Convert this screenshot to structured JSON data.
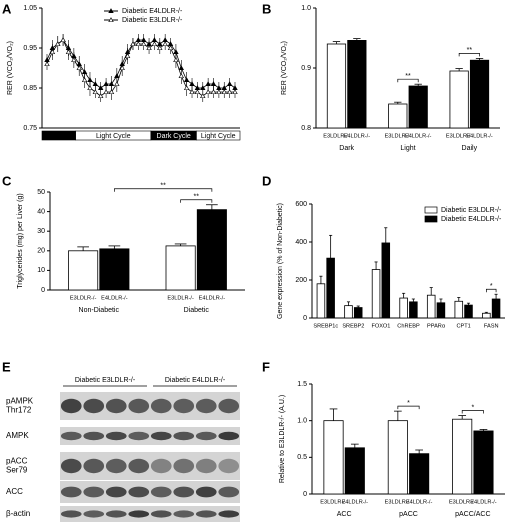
{
  "chart_data": [
    {
      "label": "A",
      "type": "line",
      "ylabel": "RER (VCO₂/VO₂)",
      "ylim": [
        0.75,
        1.05
      ],
      "yticks": [
        0.75,
        0.85,
        0.95,
        1.05
      ],
      "cycle_labels": [
        "Light Cycle",
        "Dark Cycle",
        "Light Cycle"
      ],
      "legend": "upper right",
      "series": [
        {
          "name": "Diabetic E4LDLR-/-",
          "color": "#000000",
          "marker": "filled",
          "values": [
            0.92,
            0.95,
            0.96,
            0.97,
            0.95,
            0.93,
            0.91,
            0.89,
            0.87,
            0.86,
            0.85,
            0.86,
            0.86,
            0.88,
            0.91,
            0.94,
            0.96,
            0.97,
            0.97,
            0.96,
            0.97,
            0.96,
            0.97,
            0.96,
            0.94,
            0.9,
            0.87,
            0.86,
            0.85,
            0.85,
            0.86,
            0.86,
            0.85,
            0.85,
            0.86,
            0.85
          ],
          "errors": [
            0.015,
            0.02,
            0.02,
            0.015,
            0.02,
            0.02,
            0.02,
            0.02,
            0.02,
            0.015,
            0.015,
            0.015,
            0.02,
            0.02,
            0.02,
            0.02,
            0.015,
            0.015,
            0.015,
            0.015,
            0.015,
            0.015,
            0.015,
            0.015,
            0.02,
            0.02,
            0.02,
            0.015,
            0.015,
            0.015,
            0.015,
            0.015,
            0.015,
            0.015,
            0.015,
            0.015
          ]
        },
        {
          "name": "Diabetic E3LDLR-/-",
          "color": "#000000",
          "marker": "open",
          "values": [
            0.91,
            0.94,
            0.96,
            0.97,
            0.94,
            0.92,
            0.9,
            0.87,
            0.85,
            0.84,
            0.83,
            0.84,
            0.84,
            0.86,
            0.9,
            0.93,
            0.96,
            0.96,
            0.96,
            0.95,
            0.96,
            0.95,
            0.96,
            0.95,
            0.92,
            0.88,
            0.85,
            0.84,
            0.84,
            0.83,
            0.84,
            0.84,
            0.84,
            0.84,
            0.84,
            0.84
          ],
          "errors": [
            0.015,
            0.02,
            0.02,
            0.015,
            0.02,
            0.02,
            0.02,
            0.02,
            0.02,
            0.015,
            0.015,
            0.015,
            0.02,
            0.02,
            0.02,
            0.02,
            0.015,
            0.015,
            0.015,
            0.015,
            0.015,
            0.015,
            0.015,
            0.015,
            0.02,
            0.02,
            0.02,
            0.015,
            0.015,
            0.015,
            0.015,
            0.015,
            0.015,
            0.015,
            0.015,
            0.015
          ]
        }
      ]
    },
    {
      "label": "B",
      "type": "bar",
      "ylabel": "RER (VCO₂/VO₂)",
      "ylim": [
        0.8,
        1.0
      ],
      "yticks": [
        0.8,
        0.9,
        {
          "value": 1,
          "label": "1.0"
        }
      ],
      "categories": [
        "Dark",
        "Light",
        "Daily"
      ],
      "legend": "under bars",
      "series": [
        {
          "name": "E3LDLR-/-",
          "color": "#ffffff",
          "values": [
            0.94,
            0.84,
            0.895
          ],
          "errors": [
            0.004,
            0.003,
            0.004
          ]
        },
        {
          "name": "E4LDLR-/-",
          "color": "#000000",
          "values": [
            0.946,
            0.87,
            0.913
          ],
          "errors": [
            0.003,
            0.003,
            0.003
          ]
        }
      ],
      "annotations": [
        {
          "text": "**",
          "categories": [
            1
          ]
        },
        {
          "text": "**",
          "categories": [
            2
          ]
        }
      ]
    },
    {
      "label": "C",
      "type": "bar",
      "ylabel": "Triglycerides (mg) per Liver (g)",
      "ylim": [
        0,
        50
      ],
      "yticks": [
        0,
        10,
        20,
        30,
        40,
        50
      ],
      "categories": [
        "Non-Diabetic",
        "Diabetic"
      ],
      "legend": "under bars",
      "series": [
        {
          "name": "E3LDLR-/-",
          "color": "#ffffff",
          "values": [
            20,
            22.5
          ],
          "errors": [
            2,
            1
          ]
        },
        {
          "name": "E4LDLR-/-",
          "color": "#000000",
          "values": [
            21,
            41
          ],
          "errors": [
            1.5,
            2.5
          ]
        }
      ],
      "annotations": [
        {
          "text": "**",
          "categories": [
            0,
            1
          ]
        },
        {
          "text": "**",
          "categories": [
            1
          ]
        }
      ]
    },
    {
      "label": "D",
      "type": "bar",
      "ylabel": "Gene expression (% of Non-Diabetic)",
      "ylim": [
        0,
        600
      ],
      "yticks": [
        0,
        200,
        400,
        600
      ],
      "categories": [
        "SREBP1c",
        "SREBP2",
        "FOXO1",
        "ChREBP",
        "PPARα",
        "CPT1",
        "FASN"
      ],
      "legend": "upper right",
      "series": [
        {
          "name": "Diabetic E3LDLR-/-",
          "color": "#ffffff",
          "values": [
            180,
            65,
            255,
            105,
            120,
            88,
            25
          ],
          "errors": [
            40,
            20,
            40,
            25,
            40,
            20,
            5
          ]
        },
        {
          "name": "Diabetic E4LDLR-/-",
          "color": "#000000",
          "values": [
            315,
            55,
            395,
            85,
            80,
            68,
            100
          ],
          "errors": [
            120,
            8,
            80,
            15,
            20,
            10,
            25
          ]
        }
      ],
      "annotations": [
        {
          "text": "*",
          "categories": [
            6
          ]
        }
      ]
    },
    {
      "label": "E",
      "type": "blot",
      "groups": [
        "Diabetic E3LDLR-/-",
        "Diabetic E4LDLR-/-"
      ],
      "rows": [
        [
          "pAMPK",
          "Thr172"
        ],
        [
          "AMPK"
        ],
        [
          "pACC",
          "Ser79"
        ],
        [
          "ACC"
        ],
        [
          "β-actin"
        ]
      ]
    },
    {
      "label": "F",
      "type": "bar",
      "ylabel": "Relative to E3LDLR-/- (A.U.)",
      "ylim": [
        0,
        1.5
      ],
      "yticks": [
        0,
        0.5,
        {
          "value": 1,
          "label": "1.0"
        },
        1.5
      ],
      "categories": [
        "ACC",
        "pACC",
        "pACC/ACC"
      ],
      "legend": "under bars",
      "series": [
        {
          "name": "E3LDLR-/-",
          "color": "#ffffff",
          "values": [
            1.0,
            1.0,
            1.02
          ],
          "errors": [
            0.16,
            0.13,
            0.05
          ]
        },
        {
          "name": "E4LDLR-/-",
          "color": "#000000",
          "values": [
            0.63,
            0.55,
            0.86
          ],
          "errors": [
            0.05,
            0.05,
            0.02
          ]
        }
      ],
      "annotations": [
        {
          "text": "*",
          "categories": [
            1
          ]
        },
        {
          "text": "*",
          "categories": [
            2
          ]
        }
      ]
    }
  ]
}
